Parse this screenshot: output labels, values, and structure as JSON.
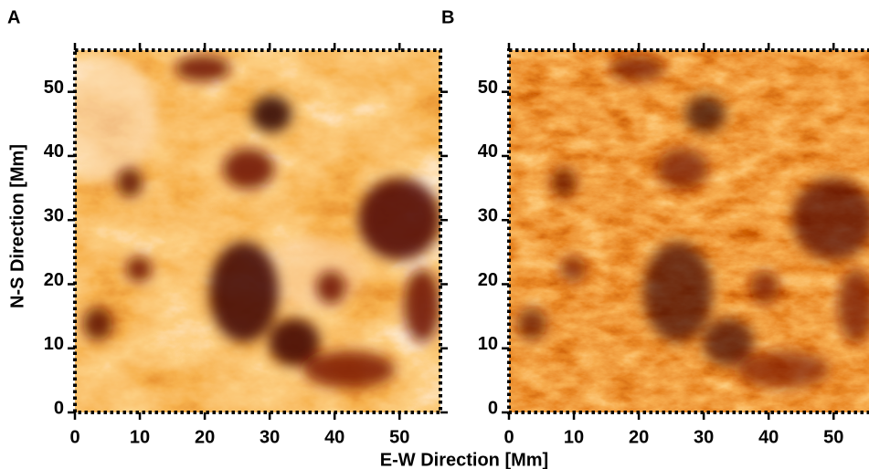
{
  "chart_data": [
    {
      "type": "image",
      "panel_label": "A",
      "xlim": [
        0,
        56.3
      ],
      "ylim": [
        0,
        56.5
      ],
      "xticks": [
        0,
        10,
        20,
        30,
        40,
        50
      ],
      "yticks": [
        0,
        10,
        20,
        30,
        40,
        50
      ],
      "xlabel": "E-W Direction [Mm]",
      "ylabel": "N-S Direction [Mm]"
    },
    {
      "type": "image",
      "panel_label": "B",
      "xlim": [
        0,
        56.3
      ],
      "ylim": [
        0,
        56.5
      ],
      "xticks": [
        0,
        10,
        20,
        30,
        40,
        50
      ],
      "yticks": [
        0,
        10,
        20,
        30,
        40,
        50
      ]
    }
  ]
}
